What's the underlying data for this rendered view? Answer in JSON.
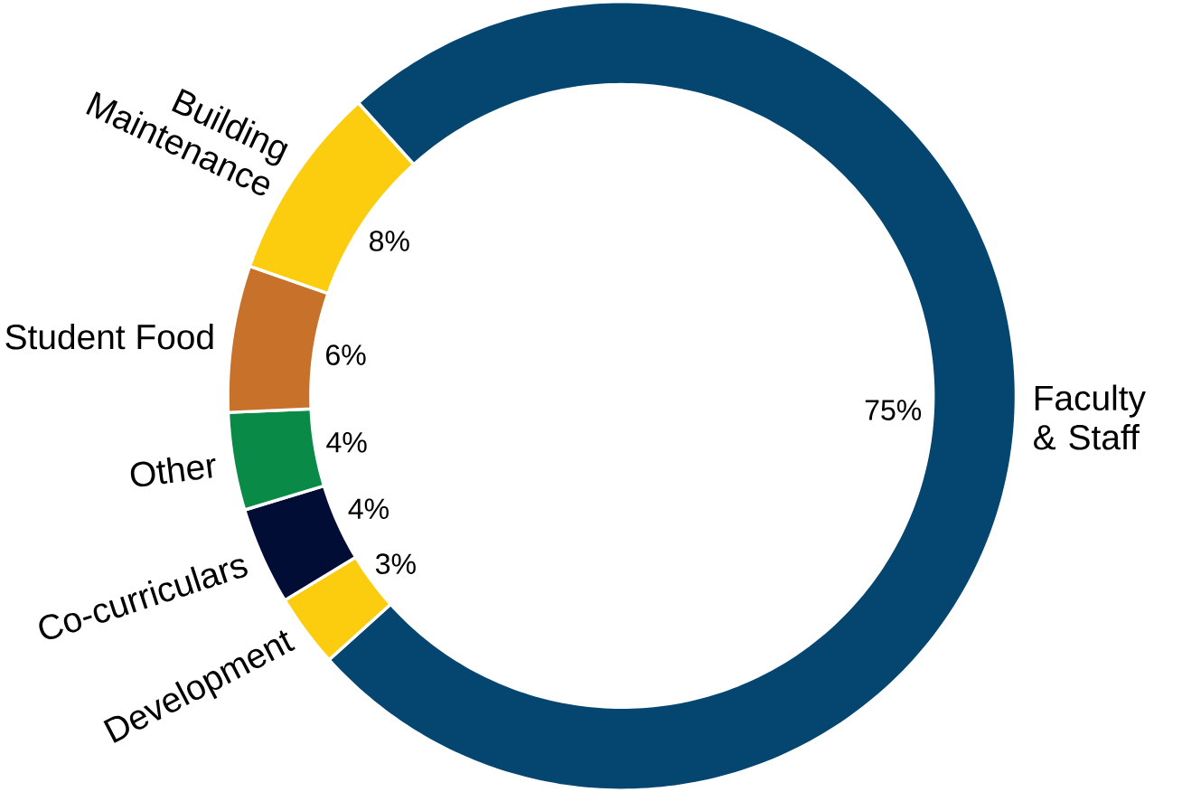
{
  "chart_data": {
    "type": "donut",
    "categories": [
      "Faculty & Staff",
      "Development",
      "Co-curriculars",
      "Other",
      "Student Food",
      "Building Maintenance"
    ],
    "values": [
      75,
      3,
      4,
      4,
      6,
      8
    ],
    "colors": [
      "#04466f",
      "#fccd0e",
      "#020d36",
      "#0a8a47",
      "#c8712b",
      "#fccd0e"
    ],
    "value_labels": [
      "75%",
      "3%",
      "4%",
      "4%",
      "6%",
      "8%"
    ]
  }
}
